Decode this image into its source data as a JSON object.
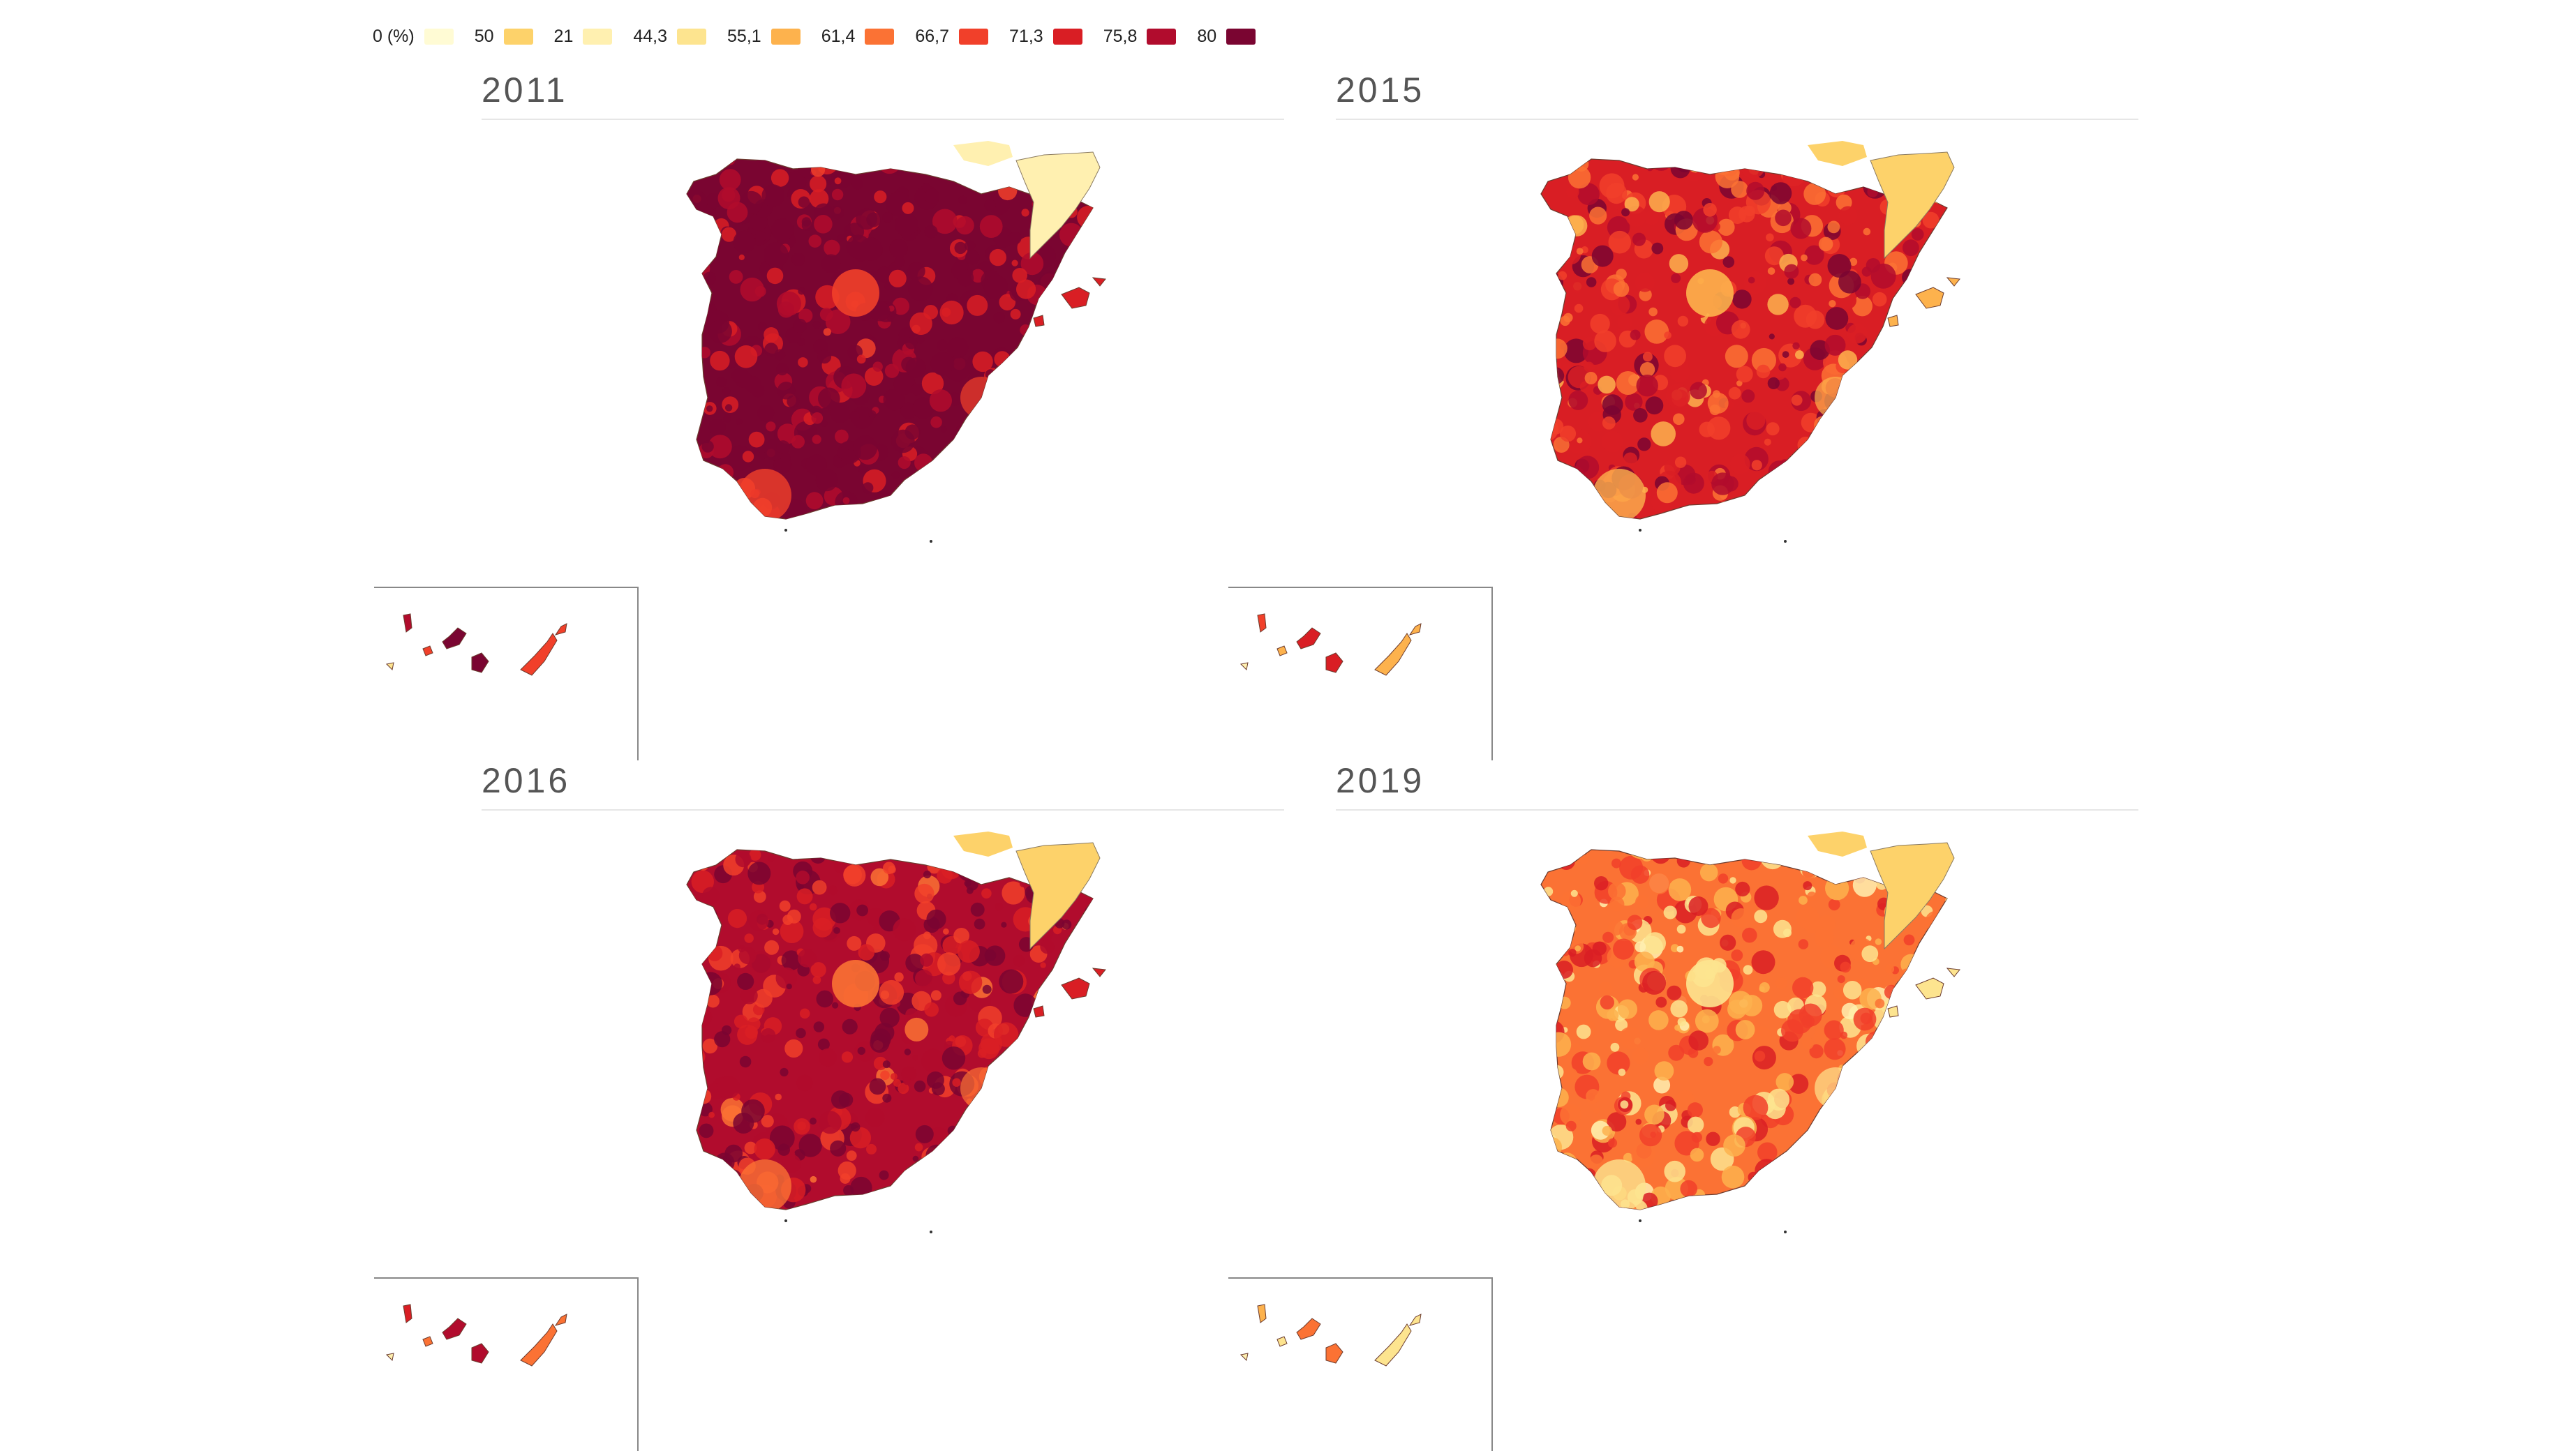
{
  "legend": {
    "items": [
      {
        "label": "0 (%)",
        "color": "#fffbd4"
      },
      {
        "label": "50",
        "color": "#fdd26a"
      },
      {
        "label": "21",
        "color": "#fff0b0"
      },
      {
        "label": "44,3",
        "color": "#fde48f"
      },
      {
        "label": "55,1",
        "color": "#fdb24d"
      },
      {
        "label": "61,4",
        "color": "#fb7234"
      },
      {
        "label": "66,7",
        "color": "#f1402a"
      },
      {
        "label": "71,3",
        "color": "#d91e24"
      },
      {
        "label": "75,8",
        "color": "#b10c2d"
      },
      {
        "label": "80",
        "color": "#7a0531"
      }
    ]
  },
  "panels": [
    {
      "year": "2011",
      "level": 9,
      "northeast_level": 2,
      "spots_level": 6
    },
    {
      "year": "2015",
      "level": 7,
      "northeast_level": 1,
      "spots_level": 4
    },
    {
      "year": "2016",
      "level": 8,
      "northeast_level": 1,
      "spots_level": 5
    },
    {
      "year": "2019",
      "level": 5,
      "northeast_level": 1,
      "spots_level": 3
    }
  ]
}
